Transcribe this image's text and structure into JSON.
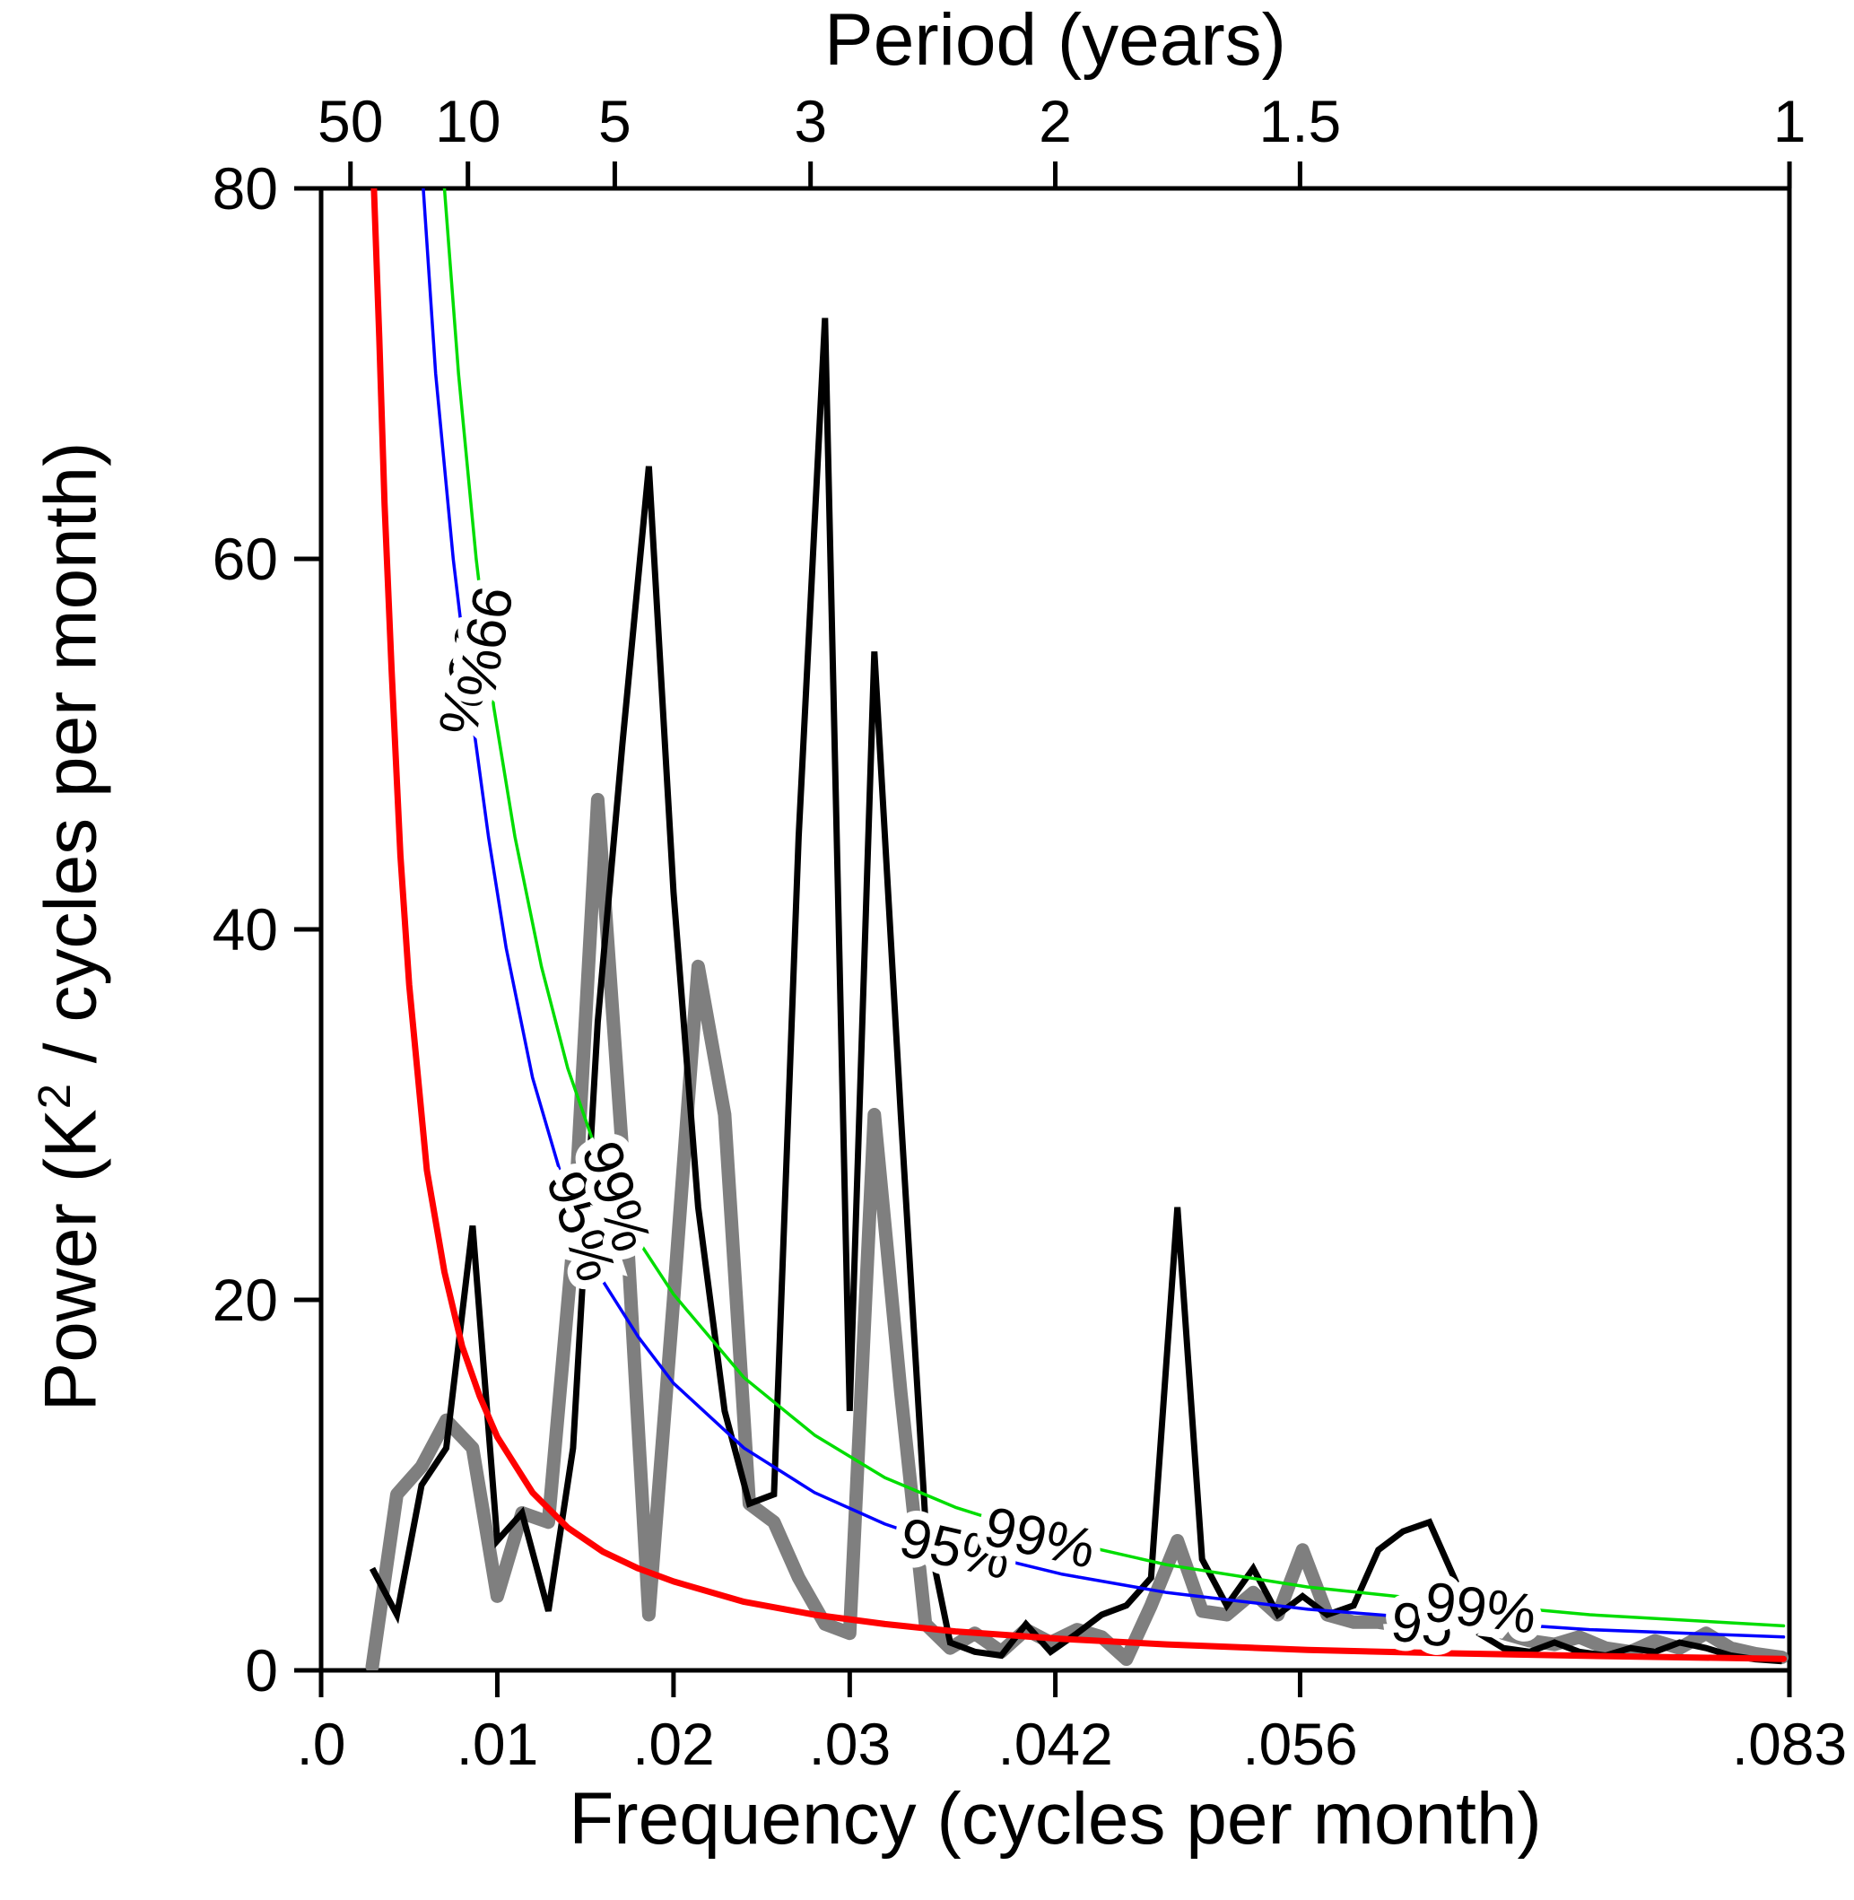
{
  "figure": {
    "top_axis_title": "Period (years)",
    "x_axis_title": "Frequency (cycles per month)",
    "y_axis_title_pre": "Power (K",
    "y_axis_title_sup": "2",
    "y_axis_title_post": " / cycles per month)"
  },
  "chart_data": {
    "type": "line",
    "title": "",
    "xlabel": "Frequency (cycles per month)",
    "ylabel": "Power (K² / cycles per month)",
    "top_axis_label": "Period (years)",
    "xlim": [
      0,
      0.08333
    ],
    "ylim": [
      0,
      80
    ],
    "grid": false,
    "x_axis": {
      "ticks": [
        {
          "value": 0.0,
          "label": ".0"
        },
        {
          "value": 0.01,
          "label": ".01"
        },
        {
          "value": 0.02,
          "label": ".02"
        },
        {
          "value": 0.03,
          "label": ".03"
        },
        {
          "value": 0.04167,
          "label": ".042"
        },
        {
          "value": 0.05556,
          "label": ".056"
        },
        {
          "value": 0.08333,
          "label": ".083"
        }
      ]
    },
    "y_axis": {
      "ticks": [
        {
          "value": 0,
          "label": "0"
        },
        {
          "value": 20,
          "label": "20"
        },
        {
          "value": 40,
          "label": "40"
        },
        {
          "value": 60,
          "label": "60"
        },
        {
          "value": 80,
          "label": "80"
        }
      ]
    },
    "top_axis": {
      "ticks": [
        {
          "period_years": 50,
          "frequency": 0.0016667,
          "label": "50"
        },
        {
          "period_years": 10,
          "frequency": 0.0083333,
          "label": "10"
        },
        {
          "period_years": 5,
          "frequency": 0.0166667,
          "label": "5"
        },
        {
          "period_years": 3,
          "frequency": 0.0277778,
          "label": "3"
        },
        {
          "period_years": 2,
          "frequency": 0.0416667,
          "label": "2"
        },
        {
          "period_years": 1.5,
          "frequency": 0.0555556,
          "label": "1.5"
        },
        {
          "period_years": 1,
          "frequency": 0.0833333,
          "label": "1"
        }
      ]
    },
    "series": [
      {
        "id": "smoothed",
        "name": "smoothed spectrum (gray)",
        "color": "#7f7f7f",
        "width": 15,
        "round": true,
        "points": [
          [
            0.0029,
            0.2
          ],
          [
            0.0043,
            9.5
          ],
          [
            0.0057,
            11.0
          ],
          [
            0.0071,
            13.5
          ],
          [
            0.0086,
            12.0
          ],
          [
            0.01,
            4.0
          ],
          [
            0.0114,
            8.5
          ],
          [
            0.0129,
            8.0
          ],
          [
            0.0143,
            23.0
          ],
          [
            0.0157,
            47.0
          ],
          [
            0.0171,
            28.0
          ],
          [
            0.0186,
            3.0
          ],
          [
            0.02,
            20.0
          ],
          [
            0.0214,
            38.0
          ],
          [
            0.0229,
            30.0
          ],
          [
            0.0243,
            9.0
          ],
          [
            0.0257,
            8.0
          ],
          [
            0.0271,
            5.0
          ],
          [
            0.0286,
            2.5
          ],
          [
            0.03,
            2.0
          ],
          [
            0.0314,
            30.0
          ],
          [
            0.0329,
            15.0
          ],
          [
            0.0343,
            2.5
          ],
          [
            0.0357,
            1.2
          ],
          [
            0.0371,
            2.0
          ],
          [
            0.0386,
            1.0
          ],
          [
            0.04,
            2.2
          ],
          [
            0.0414,
            1.5
          ],
          [
            0.0429,
            2.2
          ],
          [
            0.0443,
            1.8
          ],
          [
            0.0457,
            0.6
          ],
          [
            0.0471,
            3.5
          ],
          [
            0.0486,
            7.0
          ],
          [
            0.05,
            3.2
          ],
          [
            0.0514,
            3.0
          ],
          [
            0.0529,
            4.2
          ],
          [
            0.0543,
            3.0
          ],
          [
            0.0557,
            6.5
          ],
          [
            0.0571,
            3.0
          ],
          [
            0.0586,
            2.6
          ],
          [
            0.06,
            2.6
          ],
          [
            0.0614,
            2.4
          ],
          [
            0.0629,
            2.2
          ],
          [
            0.0643,
            2.8
          ],
          [
            0.0657,
            3.2
          ],
          [
            0.0671,
            2.0
          ],
          [
            0.0686,
            1.6
          ],
          [
            0.07,
            1.4
          ],
          [
            0.0714,
            1.8
          ],
          [
            0.0729,
            1.2
          ],
          [
            0.0743,
            1.0
          ],
          [
            0.0757,
            1.6
          ],
          [
            0.0771,
            1.2
          ],
          [
            0.0786,
            2.0
          ],
          [
            0.08,
            1.2
          ],
          [
            0.0814,
            0.9
          ],
          [
            0.0829,
            0.7
          ]
        ]
      },
      {
        "id": "spectrum",
        "name": "power spectrum (black)",
        "color": "#000000",
        "width": 7,
        "round": false,
        "points": [
          [
            0.0029,
            5.5
          ],
          [
            0.0043,
            3.0
          ],
          [
            0.0057,
            10.0
          ],
          [
            0.0071,
            12.0
          ],
          [
            0.0086,
            24.0
          ],
          [
            0.01,
            7.0
          ],
          [
            0.0114,
            8.5
          ],
          [
            0.0129,
            3.2
          ],
          [
            0.0143,
            12.0
          ],
          [
            0.0157,
            35.0
          ],
          [
            0.0171,
            50.0
          ],
          [
            0.0186,
            65.0
          ],
          [
            0.02,
            42.0
          ],
          [
            0.0214,
            25.0
          ],
          [
            0.0229,
            14.0
          ],
          [
            0.0243,
            9.0
          ],
          [
            0.0257,
            9.5
          ],
          [
            0.0271,
            45.0
          ],
          [
            0.0286,
            73.0
          ],
          [
            0.03,
            14.0
          ],
          [
            0.0314,
            55.0
          ],
          [
            0.0329,
            30.0
          ],
          [
            0.0343,
            8.0
          ],
          [
            0.0357,
            1.5
          ],
          [
            0.0371,
            1.0
          ],
          [
            0.0386,
            0.8
          ],
          [
            0.04,
            2.5
          ],
          [
            0.0414,
            1.0
          ],
          [
            0.0429,
            2.0
          ],
          [
            0.0443,
            3.0
          ],
          [
            0.0457,
            3.5
          ],
          [
            0.0471,
            5.0
          ],
          [
            0.0486,
            25.0
          ],
          [
            0.05,
            6.0
          ],
          [
            0.0514,
            3.5
          ],
          [
            0.0529,
            5.5
          ],
          [
            0.0543,
            3.0
          ],
          [
            0.0557,
            4.0
          ],
          [
            0.0571,
            3.0
          ],
          [
            0.0586,
            3.5
          ],
          [
            0.06,
            6.5
          ],
          [
            0.0614,
            7.5
          ],
          [
            0.0629,
            8.0
          ],
          [
            0.0643,
            5.0
          ],
          [
            0.0657,
            2.0
          ],
          [
            0.0671,
            1.2
          ],
          [
            0.0686,
            1.0
          ],
          [
            0.07,
            1.5
          ],
          [
            0.0714,
            1.0
          ],
          [
            0.0729,
            0.8
          ],
          [
            0.0743,
            1.2
          ],
          [
            0.0757,
            1.0
          ],
          [
            0.0771,
            1.5
          ],
          [
            0.0786,
            1.2
          ],
          [
            0.08,
            0.8
          ],
          [
            0.0814,
            0.6
          ],
          [
            0.0829,
            0.5
          ]
        ]
      },
      {
        "id": "red-noise",
        "name": "red-noise background (red)",
        "color": "#ff0000",
        "width": 7,
        "round": true,
        "points": [
          [
            0.003,
            80
          ],
          [
            0.0033,
            72
          ],
          [
            0.0036,
            63
          ],
          [
            0.004,
            54
          ],
          [
            0.0045,
            44
          ],
          [
            0.005,
            37
          ],
          [
            0.006,
            27
          ],
          [
            0.007,
            21.5
          ],
          [
            0.008,
            17.5
          ],
          [
            0.009,
            14.8
          ],
          [
            0.01,
            12.6
          ],
          [
            0.012,
            9.6
          ],
          [
            0.014,
            7.7
          ],
          [
            0.016,
            6.4
          ],
          [
            0.018,
            5.5
          ],
          [
            0.02,
            4.8
          ],
          [
            0.024,
            3.7
          ],
          [
            0.028,
            3.0
          ],
          [
            0.032,
            2.5
          ],
          [
            0.036,
            2.1
          ],
          [
            0.042,
            1.7
          ],
          [
            0.048,
            1.4
          ],
          [
            0.056,
            1.1
          ],
          [
            0.064,
            0.92
          ],
          [
            0.072,
            0.78
          ],
          [
            0.083,
            0.62
          ]
        ]
      },
      {
        "id": "conf95",
        "name": "95% confidence level (blue)",
        "color": "#0000ff",
        "width": 3.5,
        "round": true,
        "points": [
          [
            0.0058,
            80
          ],
          [
            0.0065,
            70
          ],
          [
            0.0075,
            60
          ],
          [
            0.0085,
            52
          ],
          [
            0.0095,
            45
          ],
          [
            0.0105,
            39
          ],
          [
            0.012,
            32
          ],
          [
            0.014,
            25.5
          ],
          [
            0.016,
            21
          ],
          [
            0.018,
            18
          ],
          [
            0.02,
            15.5
          ],
          [
            0.024,
            12
          ],
          [
            0.028,
            9.6
          ],
          [
            0.032,
            7.9
          ],
          [
            0.036,
            6.6
          ],
          [
            0.042,
            5.2
          ],
          [
            0.048,
            4.2
          ],
          [
            0.056,
            3.3
          ],
          [
            0.064,
            2.7
          ],
          [
            0.072,
            2.2
          ],
          [
            0.083,
            1.8
          ]
        ]
      },
      {
        "id": "conf99",
        "name": "99% confidence level (green)",
        "color": "#00dd00",
        "width": 3.5,
        "round": true,
        "points": [
          [
            0.007,
            80
          ],
          [
            0.0078,
            70
          ],
          [
            0.0088,
            60
          ],
          [
            0.0098,
            52
          ],
          [
            0.011,
            45
          ],
          [
            0.0125,
            38
          ],
          [
            0.014,
            32.5
          ],
          [
            0.016,
            27
          ],
          [
            0.018,
            23.2
          ],
          [
            0.02,
            20.3
          ],
          [
            0.024,
            15.8
          ],
          [
            0.028,
            12.7
          ],
          [
            0.032,
            10.4
          ],
          [
            0.036,
            8.8
          ],
          [
            0.042,
            7.0
          ],
          [
            0.048,
            5.7
          ],
          [
            0.056,
            4.5
          ],
          [
            0.064,
            3.7
          ],
          [
            0.072,
            3.0
          ],
          [
            0.083,
            2.4
          ]
        ]
      }
    ],
    "curve_labels": [
      {
        "text": "95%",
        "color": "#0000ff",
        "f": 0.0083,
        "power": 53.5,
        "rotation": 100
      },
      {
        "text": "99%",
        "color": "#00dd00",
        "f": 0.0093,
        "power": 55.5,
        "rotation": 100
      },
      {
        "text": "95%",
        "color": "#0000ff",
        "f": 0.0148,
        "power": 24.0,
        "rotation": 72
      },
      {
        "text": "99%",
        "color": "#00dd00",
        "f": 0.0168,
        "power": 25.6,
        "rotation": 72
      },
      {
        "text": "95%",
        "color": "#0000ff",
        "f": 0.036,
        "power": 6.6,
        "rotation": 13
      },
      {
        "text": "99%",
        "color": "#00dd00",
        "f": 0.0408,
        "power": 7.2,
        "rotation": 13
      },
      {
        "text": "95",
        "color": "#0000ff",
        "f": 0.0625,
        "power": 2.5,
        "rotation": 7
      },
      {
        "text": "99%",
        "color": "#00dd00",
        "f": 0.0658,
        "power": 3.4,
        "rotation": 7
      }
    ],
    "frame_color": "#000000",
    "background": "#ffffff"
  }
}
